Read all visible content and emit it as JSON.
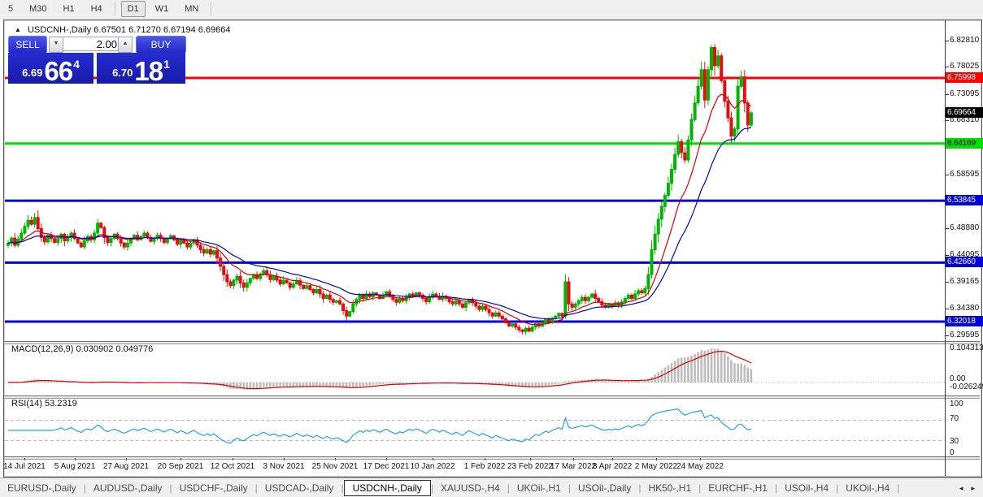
{
  "toolbar": {
    "timeframes": [
      "5",
      "M30",
      "H1",
      "H4",
      "D1",
      "W1",
      "MN"
    ],
    "active": "D1"
  },
  "chart": {
    "title": "USDCNH-,Daily",
    "ohlc_text": "6.67501 6.71270 6.67194 6.69664",
    "trade_panel": {
      "sell_label": "SELL",
      "buy_label": "BUY",
      "volume": "2.00",
      "sell_price_small": "6.69",
      "sell_price_big": "66",
      "sell_price_sup": "4",
      "buy_price_small": "6.70",
      "buy_price_big": "18",
      "buy_price_sup": "1"
    }
  },
  "chart_data": {
    "type": "candlestick",
    "symbol": "USDCNH-",
    "timeframe": "Daily",
    "last_ohlc": {
      "open": 6.67501,
      "high": 6.7127,
      "low": 6.67194,
      "close": 6.69664
    },
    "current_bid": "6.69664",
    "closes": [
      6.462,
      6.471,
      6.458,
      6.469,
      6.48,
      6.492,
      6.503,
      6.496,
      6.508,
      6.488,
      6.472,
      6.464,
      6.476,
      6.47,
      6.463,
      6.47,
      6.478,
      6.466,
      6.472,
      6.48,
      6.47,
      6.462,
      6.455,
      6.466,
      6.474,
      6.468,
      6.48,
      6.498,
      6.49,
      6.472,
      6.463,
      6.47,
      6.478,
      6.47,
      6.462,
      6.455,
      6.462,
      6.47,
      6.476,
      6.468,
      6.474,
      6.48,
      6.472,
      6.465,
      6.47,
      6.476,
      6.47,
      6.463,
      6.47,
      6.475,
      6.468,
      6.46,
      6.468,
      6.462,
      6.455,
      6.462,
      6.468,
      6.458,
      6.45,
      6.444,
      6.45,
      6.442,
      6.448,
      6.435,
      6.42,
      6.405,
      6.392,
      6.385,
      6.395,
      6.402,
      6.39,
      6.382,
      6.39,
      6.398,
      6.405,
      6.398,
      6.406,
      6.412,
      6.405,
      6.396,
      6.402,
      6.395,
      6.388,
      6.395,
      6.39,
      6.382,
      6.388,
      6.394,
      6.386,
      6.38,
      6.385,
      6.378,
      6.372,
      6.378,
      6.37,
      6.362,
      6.368,
      6.36,
      6.355,
      6.358,
      6.352,
      6.34,
      6.33,
      6.338,
      6.352,
      6.36,
      6.368,
      6.362,
      6.37,
      6.365,
      6.372,
      6.368,
      6.362,
      6.368,
      6.374,
      6.366,
      6.36,
      6.355,
      6.362,
      6.358,
      6.364,
      6.37,
      6.366,
      6.372,
      6.368,
      6.362,
      6.356,
      6.364,
      6.37,
      6.366,
      6.36,
      6.366,
      6.362,
      6.356,
      6.352,
      6.358,
      6.352,
      6.346,
      6.354,
      6.36,
      6.354,
      6.348,
      6.342,
      6.348,
      6.342,
      6.336,
      6.33,
      6.336,
      6.33,
      6.325,
      6.318,
      6.312,
      6.316,
      6.31,
      6.305,
      6.302,
      6.308,
      6.303,
      6.31,
      6.316,
      6.312,
      6.318,
      6.324,
      6.32,
      6.326,
      6.33,
      6.335,
      6.33,
      6.392,
      6.352,
      6.346,
      6.352,
      6.358,
      6.364,
      6.358,
      6.364,
      6.37,
      6.362,
      6.356,
      6.35,
      6.346,
      6.352,
      6.348,
      6.354,
      6.35,
      6.356,
      6.362,
      6.368,
      6.362,
      6.37,
      6.376,
      6.372,
      6.38,
      6.405,
      6.45,
      6.478,
      6.505,
      6.528,
      6.548,
      6.57,
      6.595,
      6.622,
      6.645,
      6.625,
      6.612,
      6.648,
      6.685,
      6.715,
      6.745,
      6.775,
      6.72,
      6.775,
      6.815,
      6.782,
      6.8,
      6.755,
      6.718,
      6.688,
      6.655,
      6.668,
      6.745,
      6.762,
      6.715,
      6.675,
      6.697
    ],
    "price_axis_ticks": [
      "6.82810",
      "6.78025",
      "6.73095",
      "6.68310",
      "6.63525",
      "6.58595",
      "6.48880",
      "6.44095",
      "6.39165",
      "6.34380",
      "6.29595"
    ],
    "levels": [
      {
        "value": "6.75998",
        "color": "#ff0000",
        "text_color": "#ffffff"
      },
      {
        "value": "6.64169",
        "color": "#00dd00",
        "text_color": "#000000"
      },
      {
        "value": "6.53845",
        "color": "#0000d8",
        "text_color": "#ffffff"
      },
      {
        "value": "6.42660",
        "color": "#0000d8",
        "text_color": "#ffffff"
      },
      {
        "value": "6.32018",
        "color": "#0000d8",
        "text_color": "#ffffff"
      }
    ],
    "x_labels": [
      "14 Jul 2021",
      "5 Aug 2021",
      "27 Aug 2021",
      "20 Sep 2021",
      "12 Oct 2021",
      "3 Nov 2021",
      "25 Nov 2021",
      "17 Dec 2021",
      "10 Jan 2022",
      "1 Feb 2022",
      "23 Feb 2022",
      "17 Mar 2022",
      "8 Apr 2022",
      "2 May 2022",
      "24 May 2022"
    ],
    "macd": {
      "label": "MACD(12,26,9) 0.030902 0.049776",
      "params": [
        12,
        26,
        9
      ],
      "main_value": 0.030902,
      "signal_value": 0.049776,
      "axis_labels": [
        "0.104313",
        "0.00",
        "-0.026249"
      ],
      "max": 0.104313,
      "min": -0.026249
    },
    "rsi": {
      "label": "RSI(14) 53.2319",
      "period": 14,
      "current": 53.2319,
      "axis_labels": [
        "100",
        "70",
        "30",
        "0"
      ],
      "levels": [
        70,
        30
      ]
    },
    "colors": {
      "up_candle": "#00b400",
      "down_candle": "#e01010",
      "ma_fast": "#d40000",
      "ma_slow": "#0008b0",
      "macd_hist": "#bdbdbd",
      "macd_signal": "#d40000",
      "rsi_line": "#2a9fe0"
    }
  },
  "tabs": {
    "items": [
      "EURUSD-,Daily",
      "AUDUSD-,Daily",
      "USDCHF-,Daily",
      "USDCAD-,Daily",
      "USDCNH-,Daily",
      "XAUUSD-,H4",
      "UKOil-,H1",
      "USOil-,Daily",
      "HK50-,H1",
      "EURCHF-,H1",
      "USOil-,H4",
      "UKOil-,H4"
    ],
    "active_index": 4,
    "scroll_left": "◂",
    "scroll_right": "▸"
  }
}
